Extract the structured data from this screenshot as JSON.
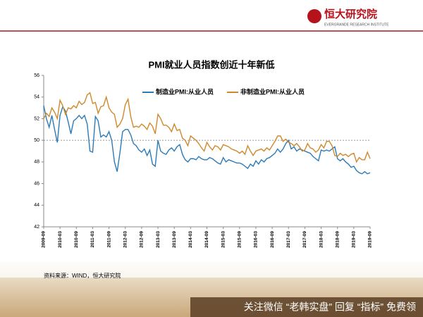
{
  "header": {
    "logo": "恒大研究院",
    "logo_sub": "EVERGRANDE RESEARCH INSTITUTE"
  },
  "footer": {
    "source": "资料来源：WIND，恒大研究院",
    "watermark": "关注微信 “老韩实盘” 回复 “指标” 免费领"
  },
  "chart_data": {
    "type": "line",
    "title": "PMI就业人员指数创近十年新低",
    "categories": [
      "2009-09",
      null,
      null,
      null,
      null,
      null,
      "2010-03",
      null,
      null,
      null,
      null,
      null,
      "2010-09",
      null,
      null,
      null,
      null,
      null,
      "2011-03",
      null,
      null,
      null,
      null,
      null,
      "2011-09",
      null,
      null,
      null,
      null,
      null,
      "2012-03",
      null,
      null,
      null,
      null,
      null,
      "2012-09",
      null,
      null,
      null,
      null,
      null,
      "2013-03",
      null,
      null,
      null,
      null,
      null,
      "2013-09",
      null,
      null,
      null,
      null,
      null,
      "2014-03",
      null,
      null,
      null,
      null,
      null,
      "2014-09",
      null,
      null,
      null,
      null,
      null,
      "2015-03",
      null,
      null,
      null,
      null,
      null,
      "2015-09",
      null,
      null,
      null,
      null,
      null,
      "2016-03",
      null,
      null,
      null,
      null,
      null,
      "2016-09",
      null,
      null,
      null,
      null,
      null,
      "2017-03",
      null,
      null,
      null,
      null,
      null,
      "2017-09",
      null,
      null,
      null,
      null,
      null,
      "2018-03",
      null,
      null,
      null,
      null,
      null,
      "2018-09",
      null,
      null,
      null,
      null,
      null,
      "2019-03",
      null,
      null,
      null,
      null,
      null,
      "2019-09"
    ],
    "series": [
      {
        "name": "制造业PMI:从业人员",
        "color": "#2b7bb9",
        "values": [
          53.2,
          52.0,
          51.2,
          52.3,
          51.0,
          49.8,
          52.3,
          53.1,
          52.7,
          51.7,
          50.6,
          51.8,
          52.0,
          52.3,
          52.0,
          52.3,
          51.5,
          49.0,
          48.9,
          52.2,
          51.8,
          50.3,
          50.5,
          50.3,
          50.8,
          50.0,
          48.0,
          47.1,
          48.8,
          50.8,
          51.0,
          51.0,
          50.5,
          49.7,
          49.5,
          49.1,
          48.9,
          49.2,
          48.6,
          49.1,
          47.8,
          47.6,
          50.0,
          49.0,
          48.8,
          48.7,
          49.1,
          49.3,
          49.0,
          49.4,
          49.6,
          48.7,
          48.2,
          48.0,
          48.3,
          48.3,
          48.2,
          48.5,
          48.3,
          48.2,
          48.2,
          48.4,
          48.3,
          48.1,
          47.9,
          47.8,
          48.4,
          48.0,
          48.2,
          48.1,
          48.0,
          47.9,
          47.9,
          47.8,
          47.6,
          47.4,
          47.8,
          47.6,
          48.1,
          47.8,
          48.2,
          48.0,
          48.3,
          48.4,
          48.6,
          48.8,
          49.2,
          48.9,
          49.2,
          49.7,
          50.0,
          49.2,
          49.4,
          49.0,
          49.2,
          49.1,
          49.0,
          48.9,
          48.8,
          48.5,
          48.3,
          48.1,
          49.1,
          49.0,
          49.1,
          49.0,
          49.2,
          49.4,
          48.3,
          48.1,
          48.3,
          48.0,
          47.8,
          47.5,
          47.6,
          47.2,
          47.0,
          46.9,
          47.1,
          46.9,
          47.0
        ]
      },
      {
        "name": "非制造业PMI:从业人员",
        "color": "#d0892c",
        "values": [
          52.0,
          52.5,
          52.2,
          53.0,
          52.6,
          52.0,
          53.7,
          53.2,
          52.4,
          53.0,
          52.9,
          53.2,
          53.0,
          53.6,
          53.3,
          53.5,
          54.2,
          54.4,
          53.4,
          53.5,
          52.5,
          53.1,
          53.2,
          54.0,
          53.0,
          52.6,
          52.4,
          51.2,
          51.5,
          52.0,
          53.3,
          53.8,
          52.2,
          51.2,
          51.3,
          51.2,
          51.5,
          51.3,
          51.0,
          51.6,
          51.3,
          50.6,
          52.4,
          52.0,
          51.4,
          51.4,
          51.2,
          50.8,
          51.5,
          50.9,
          51.0,
          50.2,
          50.0,
          49.5,
          50.4,
          50.2,
          50.0,
          49.7,
          49.3,
          49.0,
          49.8,
          49.4,
          49.1,
          49.5,
          49.4,
          49.1,
          49.6,
          49.5,
          49.4,
          49.2,
          49.1,
          49.0,
          48.8,
          49.0,
          48.7,
          49.5,
          49.0,
          48.6,
          49.0,
          49.1,
          49.2,
          49.0,
          49.3,
          49.1,
          49.5,
          49.9,
          50.4,
          50.4,
          49.9,
          50.1,
          49.8,
          49.7,
          49.5,
          49.7,
          49.4,
          49.0,
          49.1,
          49.7,
          49.3,
          49.2,
          48.9,
          49.1,
          49.6,
          49.3,
          49.9,
          49.9,
          49.5,
          48.6,
          48.5,
          48.8,
          48.6,
          48.7,
          48.5,
          48.7,
          48.8,
          48.0,
          48.4,
          48.2,
          48.2,
          48.9,
          48.3
        ]
      }
    ],
    "ylim": [
      42,
      56
    ],
    "yticks": [
      42,
      44,
      46,
      48,
      50,
      52,
      54,
      56
    ],
    "hline": 50,
    "legend": "top"
  }
}
